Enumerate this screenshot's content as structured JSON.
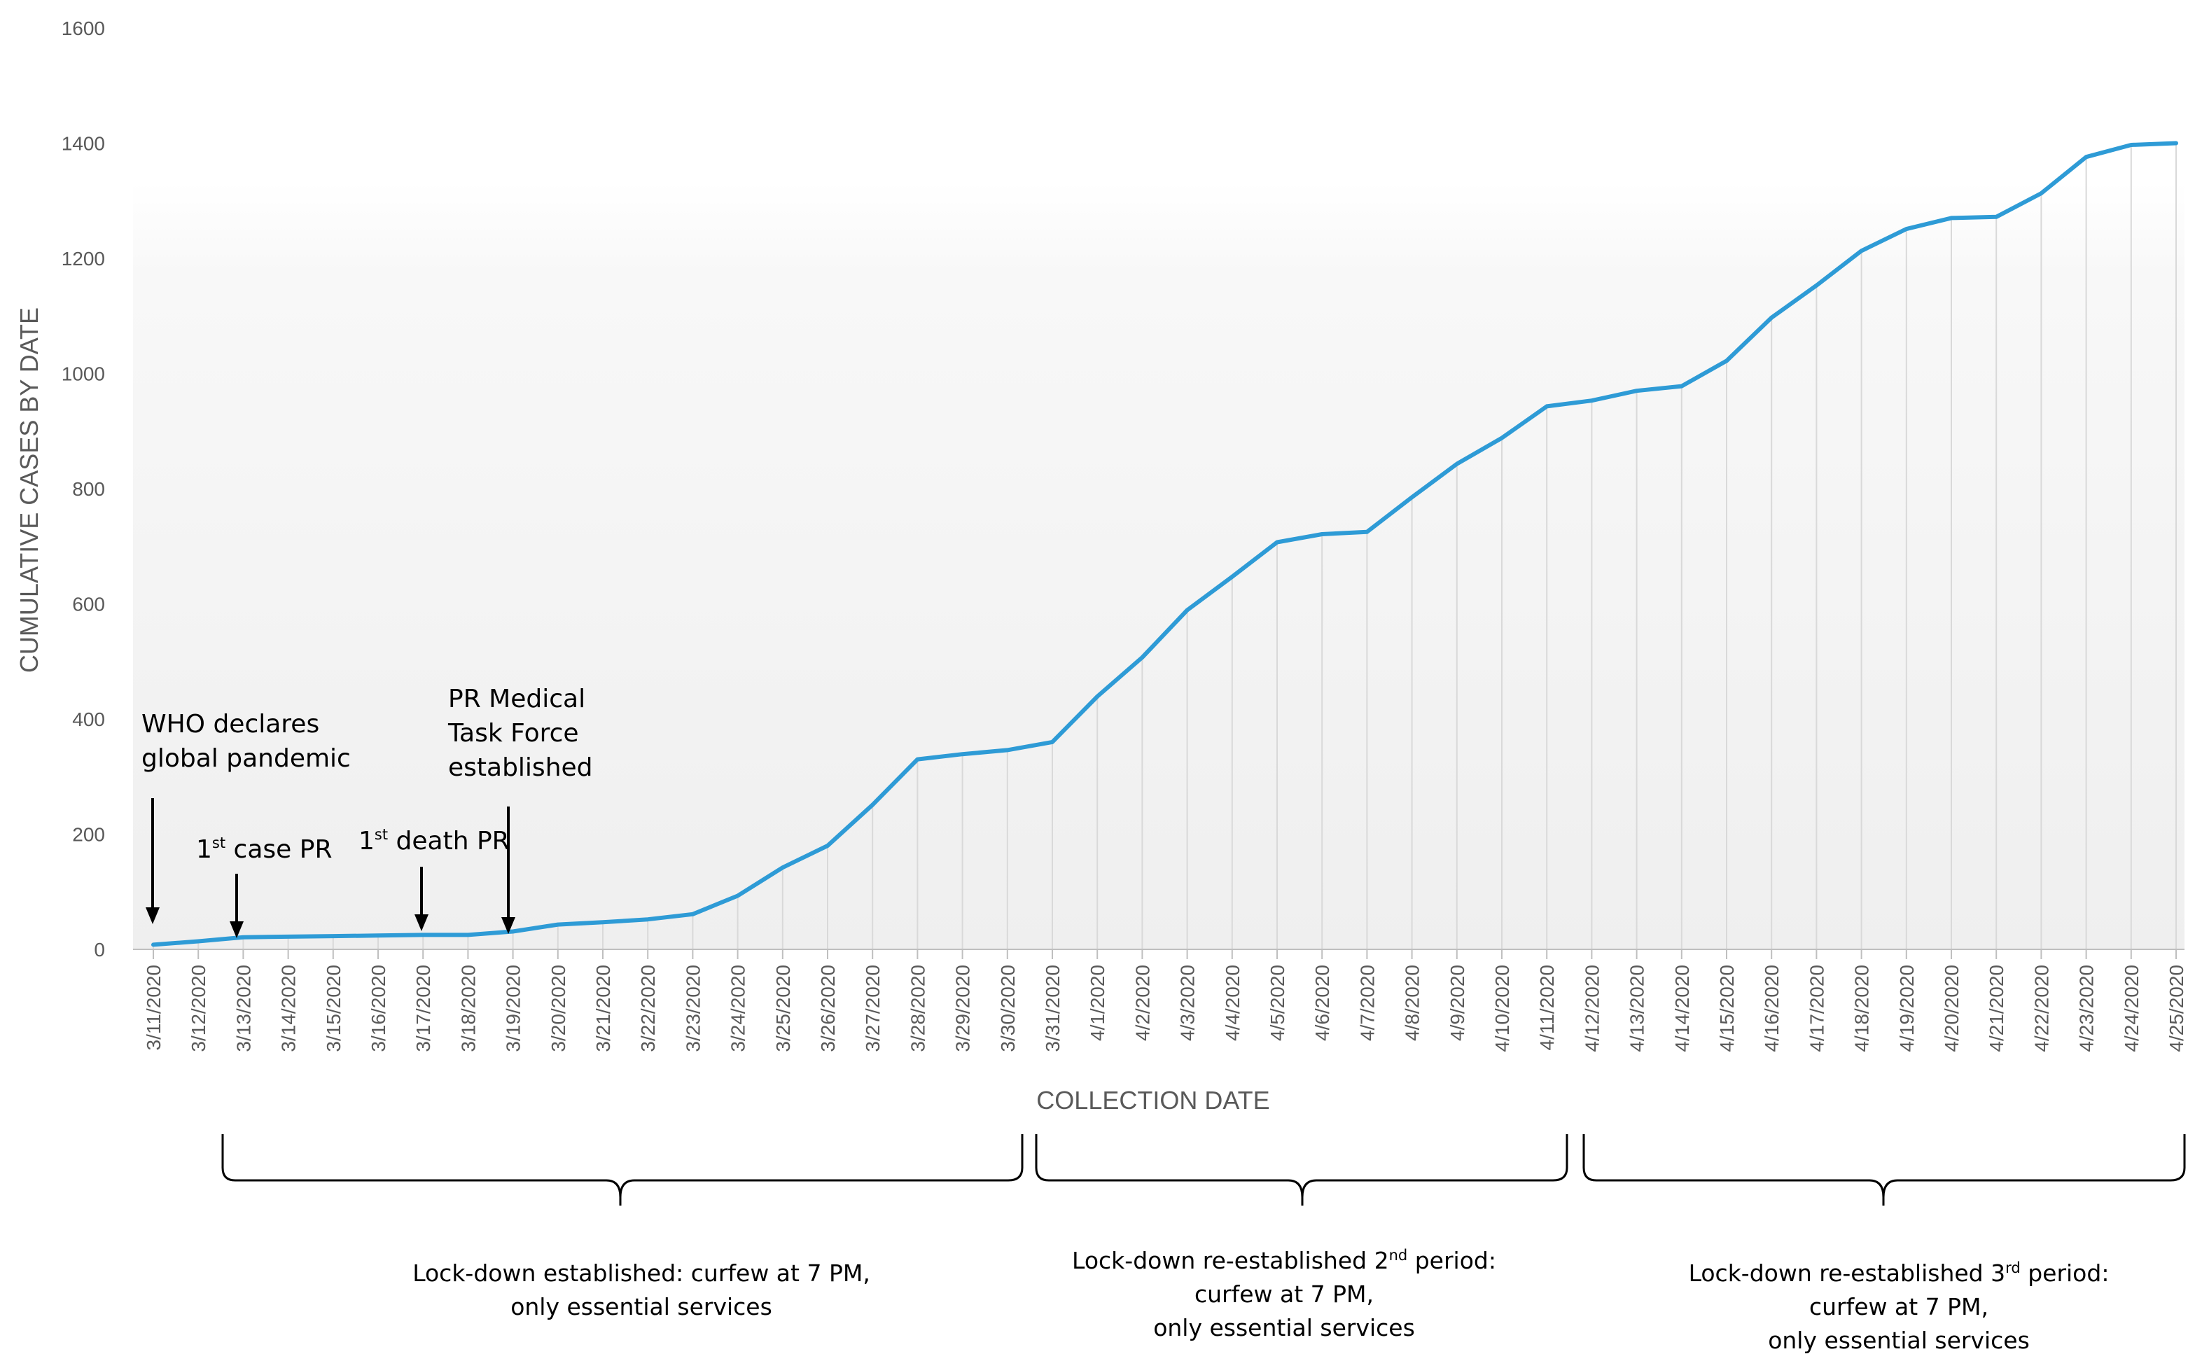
{
  "chart_data": {
    "type": "area",
    "title": "",
    "xlabel": "COLLECTION DATE",
    "ylabel": "CUMULATIVE CASES BY DATE",
    "ylim": [
      0,
      1600
    ],
    "yticks": [
      "0",
      "200",
      "400",
      "600",
      "800",
      "1000",
      "1200",
      "1400",
      "1600"
    ],
    "grid": false,
    "categories": [
      "3/11/2020",
      "3/12/2020",
      "3/13/2020",
      "3/14/2020",
      "3/15/2020",
      "3/16/2020",
      "3/17/2020",
      "3/18/2020",
      "3/19/2020",
      "3/20/2020",
      "3/21/2020",
      "3/22/2020",
      "3/23/2020",
      "3/24/2020",
      "3/25/2020",
      "3/26/2020",
      "3/27/2020",
      "3/28/2020",
      "3/29/2020",
      "3/30/2020",
      "3/31/2020",
      "4/1/2020",
      "4/2/2020",
      "4/3/2020",
      "4/4/2020",
      "4/5/2020",
      "4/6/2020",
      "4/7/2020",
      "4/8/2020",
      "4/9/2020",
      "4/10/2020",
      "4/11/2020",
      "4/12/2020",
      "4/13/2020",
      "4/14/2020",
      "4/15/2020",
      "4/16/2020",
      "4/17/2020",
      "4/18/2020",
      "4/19/2020",
      "4/20/2020",
      "4/21/2020",
      "4/22/2020",
      "4/23/2020",
      "4/24/2020",
      "4/25/2020"
    ],
    "series": [
      {
        "name": "Cumulative cases",
        "color": "#2E9BD6",
        "values": [
          8,
          14,
          21,
          22,
          23,
          24,
          25,
          25,
          31,
          43,
          47,
          52,
          61,
          93,
          142,
          180,
          251,
          330,
          339,
          346,
          360,
          439,
          507,
          589,
          647,
          707,
          721,
          725,
          785,
          843,
          888,
          943,
          953,
          970,
          978,
          1022,
          1097,
          1153,
          1213,
          1251,
          1270,
          1272,
          1313,
          1376,
          1397,
          1400
        ]
      }
    ],
    "annotations": [
      {
        "lines": [
          "WHO declares",
          "global pandemic"
        ],
        "date": "3/11/2020"
      },
      {
        "base": "1",
        "sup": "st",
        "rest": " case PR",
        "date": "3/13/2020"
      },
      {
        "base": "1",
        "sup": "st",
        "rest": " death PR",
        "date": "3/17/2020"
      },
      {
        "lines": [
          "PR Medical",
          "Task Force",
          "established"
        ],
        "date": "3/19/2020"
      }
    ],
    "periods": [
      {
        "line1": "Lock-down established: curfew at 7 PM,",
        "line2": "only essential services",
        "from": "3/13/2020",
        "to": "3/31/2020"
      },
      {
        "line1_pre": "Lock-down re-established 2",
        "line1_sup": "nd",
        "line1_post": " period:",
        "line2": "curfew at 7 PM,",
        "line3": "only essential services",
        "from": "3/31/2020",
        "to": "4/12/2020"
      },
      {
        "line1_pre": "Lock-down re-established 3",
        "line1_sup": "rd",
        "line1_post": " period:",
        "line2": "curfew at 7 PM,",
        "line3": "only essential services",
        "from": "4/12/2020",
        "to": "4/25/2020"
      }
    ]
  }
}
